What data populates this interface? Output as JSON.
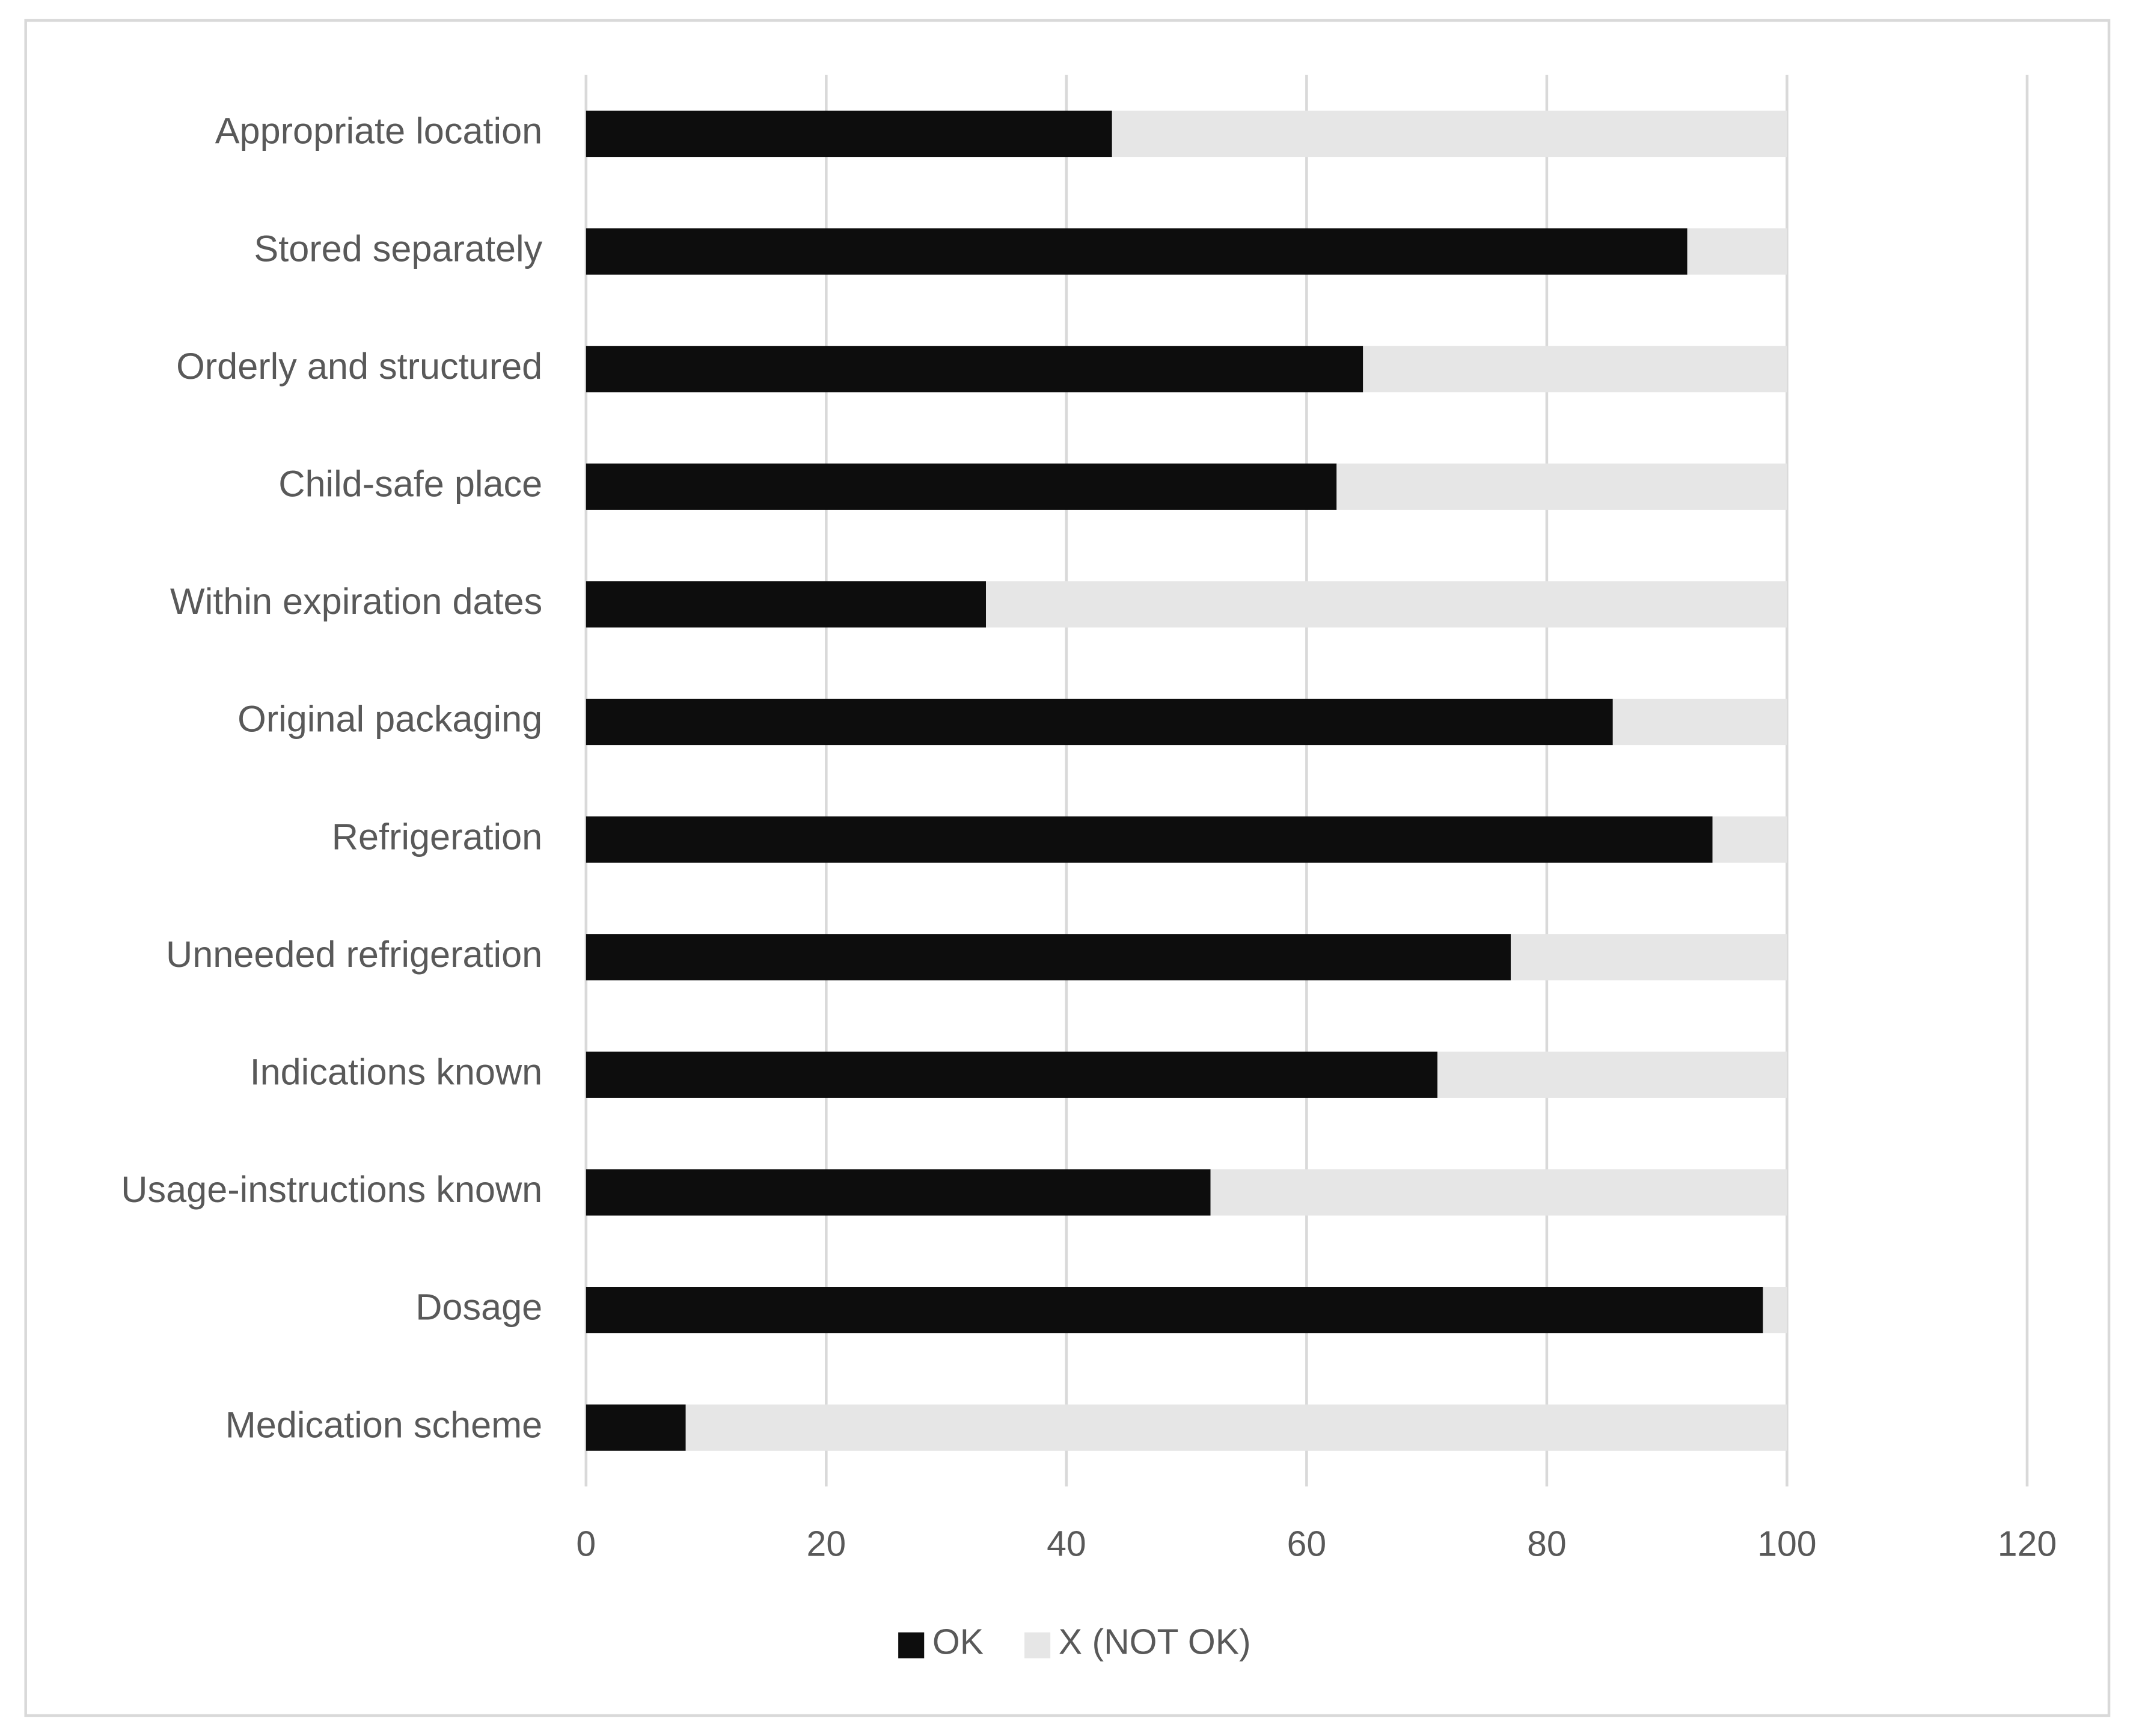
{
  "chart_data": {
    "type": "bar",
    "orientation": "horizontal",
    "stacked": true,
    "categories": [
      "Appropriate location",
      "Stored separately",
      "Orderly and structured",
      "Child-safe place",
      "Within expiration dates",
      "Original packaging",
      "Refrigeration",
      "Unneeded refrigeration",
      "Indications known",
      "Usage-instructions known",
      "Dosage",
      "Medication scheme"
    ],
    "series": [
      {
        "name": "OK",
        "color": "#0d0d0d",
        "values": [
          43.8,
          91.7,
          64.7,
          62.5,
          33.3,
          85.5,
          93.8,
          77.0,
          70.9,
          52.0,
          98.0,
          8.3
        ]
      },
      {
        "name": "X (NOT OK)",
        "color": "#e6e6e6",
        "values": [
          56.2,
          8.3,
          35.3,
          37.5,
          66.7,
          14.5,
          6.2,
          23.0,
          29.1,
          48.0,
          2.0,
          91.7
        ]
      }
    ],
    "xlim": [
      0,
      120
    ],
    "xticks": [
      0,
      20,
      40,
      60,
      80,
      100,
      120
    ],
    "grid": true,
    "legend": "bottom"
  }
}
